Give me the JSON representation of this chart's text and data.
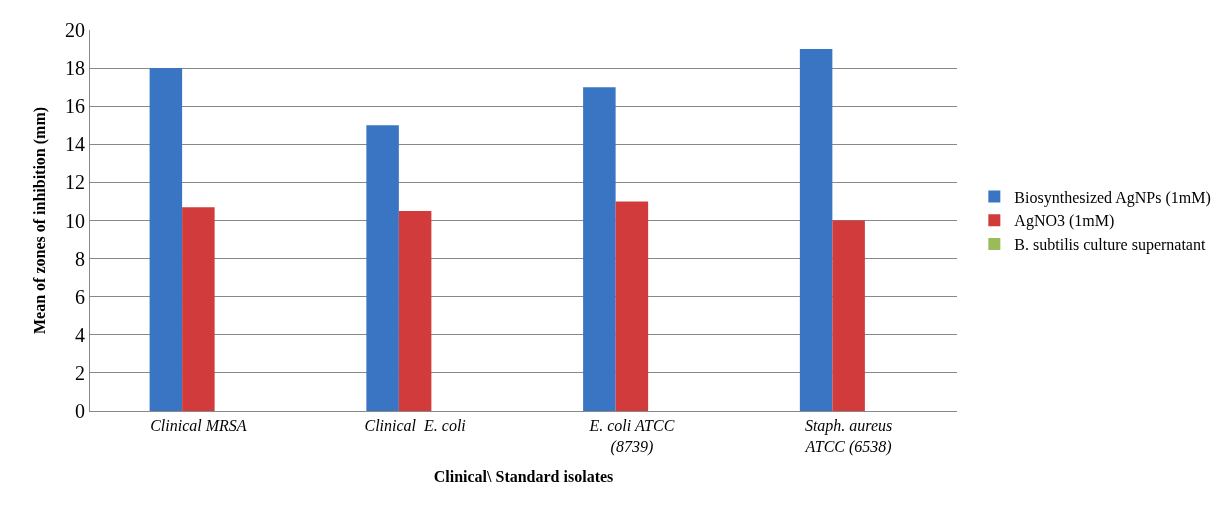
{
  "chart_data": {
    "type": "bar",
    "xlabel": "Clinical\\ Standard isolates",
    "ylabel": "Mean of zones of inhibition (mm)",
    "categories": [
      "Clinical MRSA",
      "Clinical  E. coli",
      "E. coli ATCC (8739)",
      "Staph. aureus ATCC (6538)"
    ],
    "series": [
      {
        "name": "Biosynthesized AgNPs (1mM)",
        "color": "#3a75c4",
        "values": [
          18,
          15,
          17,
          19
        ]
      },
      {
        "name": "AgNO3 (1mM)",
        "color": "#d13b3b",
        "values": [
          10.7,
          10.5,
          11,
          10
        ]
      },
      {
        "name": "B. subtilis culture supernatant",
        "color": "#9bbb59",
        "values": [
          0,
          0,
          0,
          0
        ]
      }
    ],
    "ylim": [
      0,
      20
    ],
    "yticks": [
      0,
      2,
      4,
      6,
      8,
      10,
      12,
      14,
      16,
      18,
      20
    ],
    "grid": "y",
    "legend": "right"
  }
}
